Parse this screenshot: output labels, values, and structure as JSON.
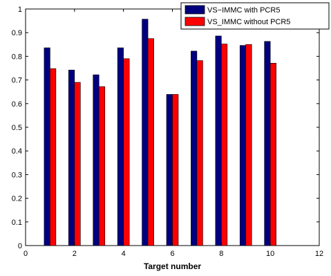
{
  "chart_data": {
    "type": "bar",
    "title": "",
    "xlabel": "Target number",
    "ylabel": "",
    "xlim": [
      0,
      12
    ],
    "ylim": [
      0,
      1
    ],
    "xticks": [
      0,
      2,
      4,
      6,
      8,
      10,
      12
    ],
    "yticks": [
      0,
      0.1,
      0.2,
      0.3,
      0.4,
      0.5,
      0.6,
      0.7,
      0.8,
      0.9,
      1
    ],
    "grid": false,
    "legend_position": "top-right",
    "categories": [
      1,
      2,
      3,
      4,
      5,
      6,
      7,
      8,
      9,
      10
    ],
    "series": [
      {
        "name": "VS−IMMC with PCR5",
        "color": "#00007f",
        "values": [
          0.836,
          0.742,
          0.722,
          0.836,
          0.957,
          0.639,
          0.822,
          0.886,
          0.846,
          0.863
        ]
      },
      {
        "name": "VS_IMMC without PCR5",
        "color": "#ff0000",
        "values": [
          0.748,
          0.69,
          0.672,
          0.79,
          0.875,
          0.639,
          0.782,
          0.852,
          0.85,
          0.771
        ]
      }
    ]
  }
}
